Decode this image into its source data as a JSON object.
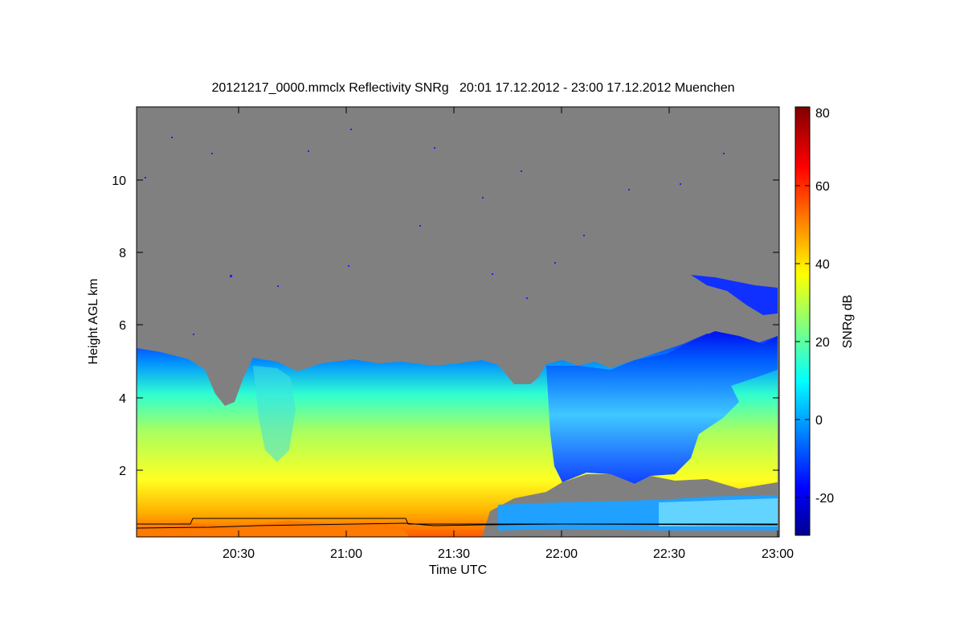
{
  "chart_data": {
    "type": "heatmap",
    "title": "20121217_0000.mmclx Reflectivity SNRg   20:01 17.12.2012 - 23:00 17.12.2012 Muenchen",
    "xlabel": "Time UTC",
    "ylabel": "Height AGL km",
    "colorbar_label": "SNRg dB",
    "x_range": [
      "20:01",
      "23:00"
    ],
    "x_ticks": [
      "20:30",
      "21:00",
      "21:30",
      "22:00",
      "22:30",
      "23:00"
    ],
    "y_range_km": [
      0.2,
      11.9
    ],
    "y_ticks": [
      "2",
      "4",
      "6",
      "8",
      "10"
    ],
    "colorbar_range": [
      -30,
      80
    ],
    "colorbar_ticks": [
      "-20",
      "0",
      "20",
      "40",
      "60",
      "80"
    ],
    "colormap": "jet",
    "no_data_color": "#808080",
    "cloud_top_km": [
      {
        "t": "20:01",
        "top": 5.4
      },
      {
        "t": "20:15",
        "top": 5.0
      },
      {
        "t": "20:22",
        "top": 4.4
      },
      {
        "t": "20:28",
        "top": 3.6
      },
      {
        "t": "20:33",
        "top": 4.2
      },
      {
        "t": "20:37",
        "top": 5.3
      },
      {
        "t": "20:45",
        "top": 5.0
      },
      {
        "t": "20:55",
        "top": 5.1
      },
      {
        "t": "21:10",
        "top": 5.2
      },
      {
        "t": "21:25",
        "top": 5.1
      },
      {
        "t": "21:40",
        "top": 5.0
      },
      {
        "t": "21:50",
        "top": 4.1
      },
      {
        "t": "22:00",
        "top": 5.2
      },
      {
        "t": "22:15",
        "top": 5.0
      },
      {
        "t": "22:30",
        "top": 5.3
      },
      {
        "t": "22:40",
        "top": 5.7
      },
      {
        "t": "23:00",
        "top": 5.7
      }
    ]
  }
}
